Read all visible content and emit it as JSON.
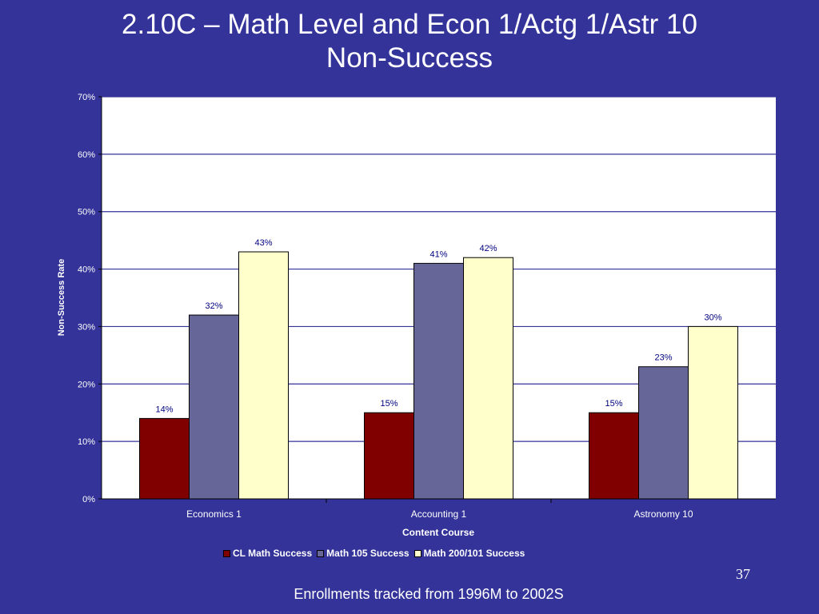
{
  "slide": {
    "title_line1": "2.10C – Math Level and Econ 1/Actg 1/Astr 10",
    "title_line2": "Non-Success",
    "page_number": "37",
    "footer": "Enrollments tracked from 1996M to 2002S"
  },
  "colors": {
    "background": "#333399",
    "plot_area": "#ffffff",
    "gridline": "#333399"
  },
  "chart_data": {
    "type": "bar",
    "categories": [
      "Economics 1",
      "Accounting 1",
      "Astronomy 10"
    ],
    "series": [
      {
        "name": "CL Math Success",
        "values": [
          14,
          15,
          15
        ],
        "labels": [
          "14%",
          "15%",
          "15%"
        ],
        "color": "#800000"
      },
      {
        "name": "Math 105 Success",
        "values": [
          32,
          41,
          23
        ],
        "labels": [
          "32%",
          "41%",
          "23%"
        ],
        "color": "#666699"
      },
      {
        "name": "Math 200/101 Success",
        "values": [
          43,
          42,
          30
        ],
        "labels": [
          "43%",
          "42%",
          "30%"
        ],
        "color": "#ffffcc"
      }
    ],
    "xlabel": "Content Course",
    "ylabel": "Non-Success Rate",
    "ylim": [
      0,
      70
    ],
    "yticks": [
      0,
      10,
      20,
      30,
      40,
      50,
      60,
      70
    ],
    "ytick_labels": [
      "0%",
      "10%",
      "20%",
      "30%",
      "40%",
      "50%",
      "60%",
      "70%"
    ],
    "grid": true,
    "legend_position": "bottom"
  }
}
